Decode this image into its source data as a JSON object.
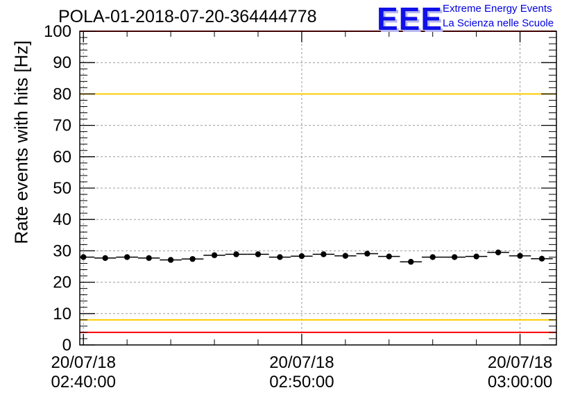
{
  "header": {
    "title": "POLA-01-2018-07-20-364444778",
    "logo_text": "EEE",
    "logo_line1": "Extreme Energy Events",
    "logo_line2": "La Scienza nelle Scuole"
  },
  "colors": {
    "data": "#000000",
    "red_limit": "#ff0000",
    "yellow_limit": "#ffcc00",
    "grid": "#999999",
    "logo": "#1010e8"
  },
  "chart_data": {
    "type": "scatter",
    "title": "POLA-01-2018-07-20-364444778",
    "ylabel": "Rate events with hits [Hz]",
    "xlabel": "",
    "ylim": [
      0,
      100
    ],
    "y_ticks": [
      0,
      10,
      20,
      30,
      40,
      50,
      60,
      70,
      80,
      90,
      100
    ],
    "x_axis": "time",
    "x_range": [
      "2018-07-20 02:39:50",
      "2018-07-20 03:01:40"
    ],
    "x_ticks": [
      {
        "date": "20/07/18",
        "time": "02:40:00"
      },
      {
        "date": "20/07/18",
        "time": "02:50:00"
      },
      {
        "date": "20/07/18",
        "time": "03:00:00"
      }
    ],
    "grid": true,
    "reference_lines": [
      {
        "y": 100,
        "color": "red"
      },
      {
        "y": 80,
        "color": "yellow"
      },
      {
        "y": 8,
        "color": "yellow"
      },
      {
        "y": 4,
        "color": "red"
      }
    ],
    "bin_width_seconds": 60,
    "series": [
      {
        "x": [
          "02:40:00",
          "02:41:00",
          "02:42:00",
          "02:43:00",
          "02:44:00",
          "02:45:00",
          "02:46:00",
          "02:47:00",
          "02:48:00",
          "02:49:00",
          "02:50:00",
          "02:51:00",
          "02:52:00",
          "02:53:00",
          "02:54:00",
          "02:55:00",
          "02:56:00",
          "02:57:00",
          "02:58:00",
          "02:59:00",
          "03:00:00",
          "03:01:00"
        ],
        "y": [
          28.0,
          27.7,
          28.0,
          27.7,
          27.1,
          27.4,
          28.6,
          28.9,
          28.9,
          28.0,
          28.3,
          28.9,
          28.4,
          29.1,
          28.2,
          26.5,
          28.0,
          28.0,
          28.2,
          29.5,
          28.4,
          27.5
        ]
      }
    ]
  }
}
